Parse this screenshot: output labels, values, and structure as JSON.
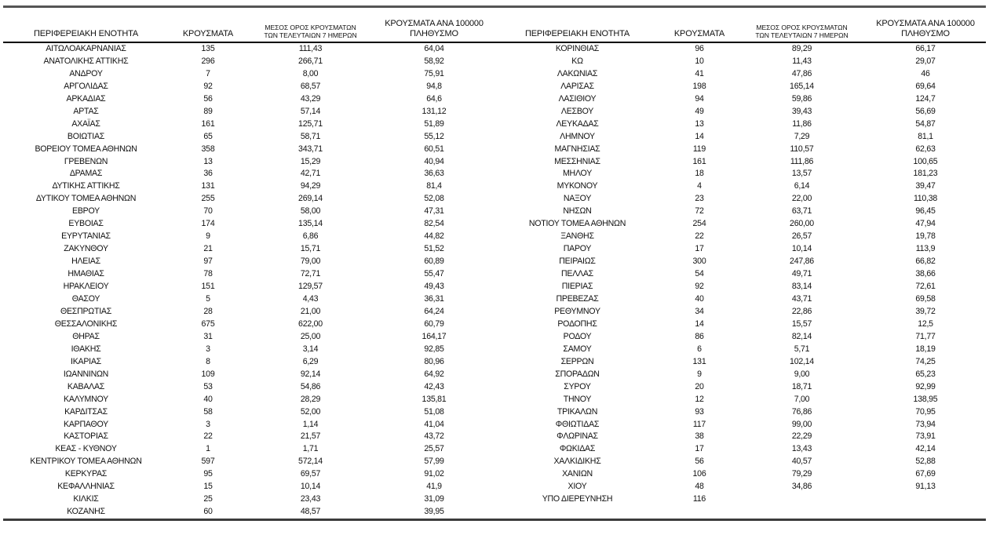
{
  "table": {
    "headers": {
      "region": "ΠΕΡΙΦΕΡΕΙΑΚΗ ΕΝΟΤΗΤΑ",
      "cases": "ΚΡΟΥΣΜΑΤΑ",
      "avg7_line1": "ΜΕΣΟΣ ΟΡΟΣ ΚΡΟΥΣΜΑΤΩΝ",
      "avg7_line2": "ΤΩΝ ΤΕΛΕΥΤΑΙΩΝ 7 ΗΜΕΡΩΝ",
      "per100k_line1": "ΚΡΟΥΣΜΑΤΑ ΑΝΑ 100000",
      "per100k_line2": "ΠΛΗΘΥΣΜΟ"
    },
    "rows_left": [
      {
        "region": "ΑΙΤΩΛΟΑΚΑΡΝΑΝΙΑΣ",
        "cases": "135",
        "avg7": "111,43",
        "per100k": "64,04"
      },
      {
        "region": "ΑΝΑΤΟΛΙΚΗΣ ΑΤΤΙΚΗΣ",
        "cases": "296",
        "avg7": "266,71",
        "per100k": "58,92"
      },
      {
        "region": "ΑΝΔΡΟΥ",
        "cases": "7",
        "avg7": "8,00",
        "per100k": "75,91"
      },
      {
        "region": "ΑΡΓΟΛΙΔΑΣ",
        "cases": "92",
        "avg7": "68,57",
        "per100k": "94,8"
      },
      {
        "region": "ΑΡΚΑΔΙΑΣ",
        "cases": "56",
        "avg7": "43,29",
        "per100k": "64,6"
      },
      {
        "region": "ΑΡΤΑΣ",
        "cases": "89",
        "avg7": "57,14",
        "per100k": "131,12"
      },
      {
        "region": "ΑΧΑΪΑΣ",
        "cases": "161",
        "avg7": "125,71",
        "per100k": "51,89"
      },
      {
        "region": "ΒΟΙΩΤΙΑΣ",
        "cases": "65",
        "avg7": "58,71",
        "per100k": "55,12"
      },
      {
        "region": "ΒΟΡΕΙΟΥ ΤΟΜΕΑ ΑΘΗΝΩΝ",
        "cases": "358",
        "avg7": "343,71",
        "per100k": "60,51"
      },
      {
        "region": "ΓΡΕΒΕΝΩΝ",
        "cases": "13",
        "avg7": "15,29",
        "per100k": "40,94"
      },
      {
        "region": "ΔΡΑΜΑΣ",
        "cases": "36",
        "avg7": "42,71",
        "per100k": "36,63"
      },
      {
        "region": "ΔΥΤΙΚΗΣ ΑΤΤΙΚΗΣ",
        "cases": "131",
        "avg7": "94,29",
        "per100k": "81,4"
      },
      {
        "region": "ΔΥΤΙΚΟΥ ΤΟΜΕΑ ΑΘΗΝΩΝ",
        "cases": "255",
        "avg7": "269,14",
        "per100k": "52,08"
      },
      {
        "region": "ΕΒΡΟΥ",
        "cases": "70",
        "avg7": "58,00",
        "per100k": "47,31"
      },
      {
        "region": "ΕΥΒΟΙΑΣ",
        "cases": "174",
        "avg7": "135,14",
        "per100k": "82,54"
      },
      {
        "region": "ΕΥΡΥΤΑΝΙΑΣ",
        "cases": "9",
        "avg7": "6,86",
        "per100k": "44,82"
      },
      {
        "region": "ΖΑΚΥΝΘΟΥ",
        "cases": "21",
        "avg7": "15,71",
        "per100k": "51,52"
      },
      {
        "region": "ΗΛΕΙΑΣ",
        "cases": "97",
        "avg7": "79,00",
        "per100k": "60,89"
      },
      {
        "region": "ΗΜΑΘΙΑΣ",
        "cases": "78",
        "avg7": "72,71",
        "per100k": "55,47"
      },
      {
        "region": "ΗΡΑΚΛΕΙΟΥ",
        "cases": "151",
        "avg7": "129,57",
        "per100k": "49,43"
      },
      {
        "region": "ΘΑΣΟΥ",
        "cases": "5",
        "avg7": "4,43",
        "per100k": "36,31"
      },
      {
        "region": "ΘΕΣΠΡΩΤΙΑΣ",
        "cases": "28",
        "avg7": "21,00",
        "per100k": "64,24"
      },
      {
        "region": "ΘΕΣΣΑΛΟΝΙΚΗΣ",
        "cases": "675",
        "avg7": "622,00",
        "per100k": "60,79"
      },
      {
        "region": "ΘΗΡΑΣ",
        "cases": "31",
        "avg7": "25,00",
        "per100k": "164,17"
      },
      {
        "region": "ΙΘΑΚΗΣ",
        "cases": "3",
        "avg7": "3,14",
        "per100k": "92,85"
      },
      {
        "region": "ΙΚΑΡΙΑΣ",
        "cases": "8",
        "avg7": "6,29",
        "per100k": "80,96"
      },
      {
        "region": "ΙΩΑΝΝΙΝΩΝ",
        "cases": "109",
        "avg7": "92,14",
        "per100k": "64,92"
      },
      {
        "region": "ΚΑΒΑΛΑΣ",
        "cases": "53",
        "avg7": "54,86",
        "per100k": "42,43"
      },
      {
        "region": "ΚΑΛΥΜΝΟΥ",
        "cases": "40",
        "avg7": "28,29",
        "per100k": "135,81"
      },
      {
        "region": "ΚΑΡΔΙΤΣΑΣ",
        "cases": "58",
        "avg7": "52,00",
        "per100k": "51,08"
      },
      {
        "region": "ΚΑΡΠΑΘΟΥ",
        "cases": "3",
        "avg7": "1,14",
        "per100k": "41,04"
      },
      {
        "region": "ΚΑΣΤΟΡΙΑΣ",
        "cases": "22",
        "avg7": "21,57",
        "per100k": "43,72"
      },
      {
        "region": "ΚΕΑΣ - ΚΥΘΝΟΥ",
        "cases": "1",
        "avg7": "1,71",
        "per100k": "25,57"
      },
      {
        "region": "ΚΕΝΤΡΙΚΟΥ ΤΟΜΕΑ ΑΘΗΝΩΝ",
        "cases": "597",
        "avg7": "572,14",
        "per100k": "57,99"
      },
      {
        "region": "ΚΕΡΚΥΡΑΣ",
        "cases": "95",
        "avg7": "69,57",
        "per100k": "91,02"
      },
      {
        "region": "ΚΕΦΑΛΛΗΝΙΑΣ",
        "cases": "15",
        "avg7": "10,14",
        "per100k": "41,9"
      },
      {
        "region": "ΚΙΛΚΙΣ",
        "cases": "25",
        "avg7": "23,43",
        "per100k": "31,09"
      },
      {
        "region": "ΚΟΖΑΝΗΣ",
        "cases": "60",
        "avg7": "48,57",
        "per100k": "39,95"
      }
    ],
    "rows_right": [
      {
        "region": "ΚΟΡΙΝΘΙΑΣ",
        "cases": "96",
        "avg7": "89,29",
        "per100k": "66,17"
      },
      {
        "region": "ΚΩ",
        "cases": "10",
        "avg7": "11,43",
        "per100k": "29,07"
      },
      {
        "region": "ΛΑΚΩΝΙΑΣ",
        "cases": "41",
        "avg7": "47,86",
        "per100k": "46"
      },
      {
        "region": "ΛΑΡΙΣΑΣ",
        "cases": "198",
        "avg7": "165,14",
        "per100k": "69,64"
      },
      {
        "region": "ΛΑΣΙΘΙΟΥ",
        "cases": "94",
        "avg7": "59,86",
        "per100k": "124,7"
      },
      {
        "region": "ΛΕΣΒΟΥ",
        "cases": "49",
        "avg7": "39,43",
        "per100k": "56,69"
      },
      {
        "region": "ΛΕΥΚΑΔΑΣ",
        "cases": "13",
        "avg7": "11,86",
        "per100k": "54,87"
      },
      {
        "region": "ΛΗΜΝΟΥ",
        "cases": "14",
        "avg7": "7,29",
        "per100k": "81,1"
      },
      {
        "region": "ΜΑΓΝΗΣΙΑΣ",
        "cases": "119",
        "avg7": "110,57",
        "per100k": "62,63"
      },
      {
        "region": "ΜΕΣΣΗΝΙΑΣ",
        "cases": "161",
        "avg7": "111,86",
        "per100k": "100,65"
      },
      {
        "region": "ΜΗΛΟΥ",
        "cases": "18",
        "avg7": "13,57",
        "per100k": "181,23"
      },
      {
        "region": "ΜΥΚΟΝΟΥ",
        "cases": "4",
        "avg7": "6,14",
        "per100k": "39,47"
      },
      {
        "region": "ΝΑΞΟΥ",
        "cases": "23",
        "avg7": "22,00",
        "per100k": "110,38"
      },
      {
        "region": "ΝΗΣΩΝ",
        "cases": "72",
        "avg7": "63,71",
        "per100k": "96,45"
      },
      {
        "region": "ΝΟΤΙΟΥ ΤΟΜΕΑ ΑΘΗΝΩΝ",
        "cases": "254",
        "avg7": "260,00",
        "per100k": "47,94"
      },
      {
        "region": "ΞΑΝΘΗΣ",
        "cases": "22",
        "avg7": "26,57",
        "per100k": "19,78"
      },
      {
        "region": "ΠΑΡΟΥ",
        "cases": "17",
        "avg7": "10,14",
        "per100k": "113,9"
      },
      {
        "region": "ΠΕΙΡΑΙΩΣ",
        "cases": "300",
        "avg7": "247,86",
        "per100k": "66,82"
      },
      {
        "region": "ΠΕΛΛΑΣ",
        "cases": "54",
        "avg7": "49,71",
        "per100k": "38,66"
      },
      {
        "region": "ΠΙΕΡΙΑΣ",
        "cases": "92",
        "avg7": "83,14",
        "per100k": "72,61"
      },
      {
        "region": "ΠΡΕΒΕΖΑΣ",
        "cases": "40",
        "avg7": "43,71",
        "per100k": "69,58"
      },
      {
        "region": "ΡΕΘΥΜΝΟΥ",
        "cases": "34",
        "avg7": "22,86",
        "per100k": "39,72"
      },
      {
        "region": "ΡΟΔΟΠΗΣ",
        "cases": "14",
        "avg7": "15,57",
        "per100k": "12,5"
      },
      {
        "region": "ΡΟΔΟΥ",
        "cases": "86",
        "avg7": "82,14",
        "per100k": "71,77"
      },
      {
        "region": "ΣΑΜΟΥ",
        "cases": "6",
        "avg7": "5,71",
        "per100k": "18,19"
      },
      {
        "region": "ΣΕΡΡΩΝ",
        "cases": "131",
        "avg7": "102,14",
        "per100k": "74,25"
      },
      {
        "region": "ΣΠΟΡΑΔΩΝ",
        "cases": "9",
        "avg7": "9,00",
        "per100k": "65,23"
      },
      {
        "region": "ΣΥΡΟΥ",
        "cases": "20",
        "avg7": "18,71",
        "per100k": "92,99"
      },
      {
        "region": "ΤΗΝΟΥ",
        "cases": "12",
        "avg7": "7,00",
        "per100k": "138,95"
      },
      {
        "region": "ΤΡΙΚΑΛΩΝ",
        "cases": "93",
        "avg7": "76,86",
        "per100k": "70,95"
      },
      {
        "region": "ΦΘΙΩΤΙΔΑΣ",
        "cases": "117",
        "avg7": "99,00",
        "per100k": "73,94"
      },
      {
        "region": "ΦΛΩΡΙΝΑΣ",
        "cases": "38",
        "avg7": "22,29",
        "per100k": "73,91"
      },
      {
        "region": "ΦΩΚΙΔΑΣ",
        "cases": "17",
        "avg7": "13,43",
        "per100k": "42,14"
      },
      {
        "region": "ΧΑΛΚΙΔΙΚΗΣ",
        "cases": "56",
        "avg7": "40,57",
        "per100k": "52,88"
      },
      {
        "region": "ΧΑΝΙΩΝ",
        "cases": "106",
        "avg7": "79,29",
        "per100k": "67,69"
      },
      {
        "region": "ΧΙΟΥ",
        "cases": "48",
        "avg7": "34,86",
        "per100k": "91,13"
      },
      {
        "region": "ΥΠΟ ΔΙΕΡΕΥΝΗΣΗ",
        "cases": "116",
        "avg7": "",
        "per100k": ""
      }
    ]
  }
}
